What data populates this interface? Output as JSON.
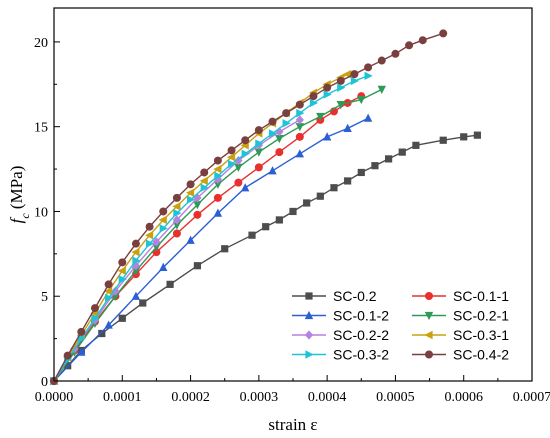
{
  "chart_data": {
    "type": "line",
    "xlabel": "strain ε",
    "ylabel_main": "f",
    "ylabel_sub": "c",
    "ylabel_unit": " (MPa)",
    "xlim": [
      0,
      0.0007
    ],
    "ylim": [
      0,
      22
    ],
    "xticks": [
      "0.0000",
      "0.0001",
      "0.0002",
      "0.0003",
      "0.0004",
      "0.0005",
      "0.0006",
      "0.0007"
    ],
    "yticks": [
      "0",
      "5",
      "10",
      "15",
      "20"
    ],
    "legend_position": "bottom-right",
    "series": [
      {
        "name": "SC-0.2",
        "color": "#4d4d4d",
        "marker": "square",
        "x": [
          0.0,
          2e-05,
          4e-05,
          7e-05,
          0.0001,
          0.00013,
          0.00017,
          0.00021,
          0.00025,
          0.00029,
          0.00031,
          0.00033,
          0.00035,
          0.00037,
          0.00039,
          0.00041,
          0.00043,
          0.00045,
          0.00047,
          0.00049,
          0.00051,
          0.00053,
          0.00057,
          0.0006,
          0.00062
        ],
        "y": [
          0.0,
          0.9,
          1.8,
          2.8,
          3.7,
          4.6,
          5.7,
          6.8,
          7.8,
          8.6,
          9.1,
          9.5,
          10.0,
          10.5,
          10.9,
          11.4,
          11.8,
          12.3,
          12.7,
          13.1,
          13.5,
          13.9,
          14.2,
          14.4,
          14.5
        ]
      },
      {
        "name": "SC-0.1-1",
        "color": "#e8312f",
        "marker": "circle",
        "x": [
          0.0,
          3e-05,
          6e-05,
          9e-05,
          0.00012,
          0.00015,
          0.00018,
          0.00021,
          0.00024,
          0.00027,
          0.0003,
          0.00033,
          0.00036,
          0.00039,
          0.00041,
          0.00043,
          0.00045
        ],
        "y": [
          0.0,
          1.8,
          3.5,
          5.0,
          6.3,
          7.6,
          8.7,
          9.8,
          10.8,
          11.7,
          12.6,
          13.5,
          14.4,
          15.4,
          15.9,
          16.4,
          16.8
        ]
      },
      {
        "name": "SC-0.1-2",
        "color": "#2b5fd6",
        "marker": "triangle-up",
        "x": [
          0.0,
          4e-05,
          8e-05,
          0.00012,
          0.00016,
          0.0002,
          0.00024,
          0.00028,
          0.00032,
          0.00036,
          0.0004,
          0.00043,
          0.00046
        ],
        "y": [
          0.0,
          1.7,
          3.3,
          5.0,
          6.7,
          8.3,
          9.9,
          11.4,
          12.4,
          13.4,
          14.4,
          14.9,
          15.5
        ]
      },
      {
        "name": "SC-0.2-1",
        "color": "#2e9a55",
        "marker": "triangle-down",
        "x": [
          0.0,
          3e-05,
          6e-05,
          9e-05,
          0.00012,
          0.00015,
          0.00018,
          0.00021,
          0.00024,
          0.00027,
          0.0003,
          0.00033,
          0.00036,
          0.00039,
          0.00042,
          0.00045,
          0.00048
        ],
        "y": [
          0.0,
          1.7,
          3.4,
          5.0,
          6.5,
          7.9,
          9.2,
          10.4,
          11.6,
          12.6,
          13.5,
          14.3,
          15.0,
          15.6,
          16.3,
          16.6,
          17.2
        ]
      },
      {
        "name": "SC-0.2-2",
        "color": "#b781e0",
        "marker": "diamond",
        "x": [
          0.0,
          3e-05,
          6e-05,
          9e-05,
          0.00012,
          0.00015,
          0.00018,
          0.00021,
          0.00024,
          0.00027,
          0.0003,
          0.00033,
          0.00036
        ],
        "y": [
          0.0,
          1.9,
          3.6,
          5.3,
          6.8,
          8.2,
          9.5,
          10.8,
          11.9,
          13.0,
          13.9,
          14.7,
          15.4
        ]
      },
      {
        "name": "SC-0.3-1",
        "color": "#c9a010",
        "marker": "triangle-left",
        "x": [
          0.0,
          2e-05,
          4e-05,
          6e-05,
          8e-05,
          0.0001,
          0.00012,
          0.00014,
          0.00016,
          0.00018,
          0.0002,
          0.00022,
          0.00024,
          0.00026,
          0.00028,
          0.0003,
          0.00032,
          0.00034,
          0.00036,
          0.00038,
          0.0004,
          0.00042,
          0.00043
        ],
        "y": [
          0.0,
          1.4,
          2.7,
          4.0,
          5.3,
          6.5,
          7.6,
          8.6,
          9.5,
          10.3,
          11.1,
          11.8,
          12.5,
          13.2,
          13.9,
          14.6,
          15.2,
          15.8,
          16.4,
          17.0,
          17.5,
          17.9,
          18.1
        ]
      },
      {
        "name": "SC-0.3-2",
        "color": "#1fc3d6",
        "marker": "triangle-right",
        "x": [
          0.0,
          2e-05,
          4e-05,
          6e-05,
          8e-05,
          0.0001,
          0.00012,
          0.00014,
          0.00016,
          0.00018,
          0.0002,
          0.00022,
          0.00024,
          0.00026,
          0.00028,
          0.0003,
          0.00032,
          0.00034,
          0.00036,
          0.00038,
          0.0004,
          0.00042,
          0.00044,
          0.00046
        ],
        "y": [
          0.0,
          1.3,
          2.5,
          3.7,
          4.9,
          6.0,
          7.1,
          8.1,
          9.0,
          9.9,
          10.7,
          11.4,
          12.1,
          12.8,
          13.4,
          14.0,
          14.6,
          15.2,
          15.8,
          16.4,
          16.9,
          17.3,
          17.7,
          18.0
        ]
      },
      {
        "name": "SC-0.4-2",
        "color": "#7a3f3f",
        "marker": "circle",
        "x": [
          0.0,
          2e-05,
          4e-05,
          6e-05,
          8e-05,
          0.0001,
          0.00012,
          0.00014,
          0.00016,
          0.00018,
          0.0002,
          0.00022,
          0.00024,
          0.00026,
          0.00028,
          0.0003,
          0.00032,
          0.00034,
          0.00036,
          0.00038,
          0.0004,
          0.00042,
          0.00044,
          0.00046,
          0.00048,
          0.0005,
          0.00052,
          0.00054,
          0.00057
        ],
        "y": [
          0.0,
          1.5,
          2.9,
          4.3,
          5.7,
          7.0,
          8.1,
          9.1,
          10.0,
          10.8,
          11.6,
          12.3,
          13.0,
          13.6,
          14.2,
          14.8,
          15.3,
          15.8,
          16.3,
          16.8,
          17.3,
          17.7,
          18.1,
          18.5,
          18.9,
          19.3,
          19.8,
          20.1,
          20.5
        ]
      }
    ]
  }
}
